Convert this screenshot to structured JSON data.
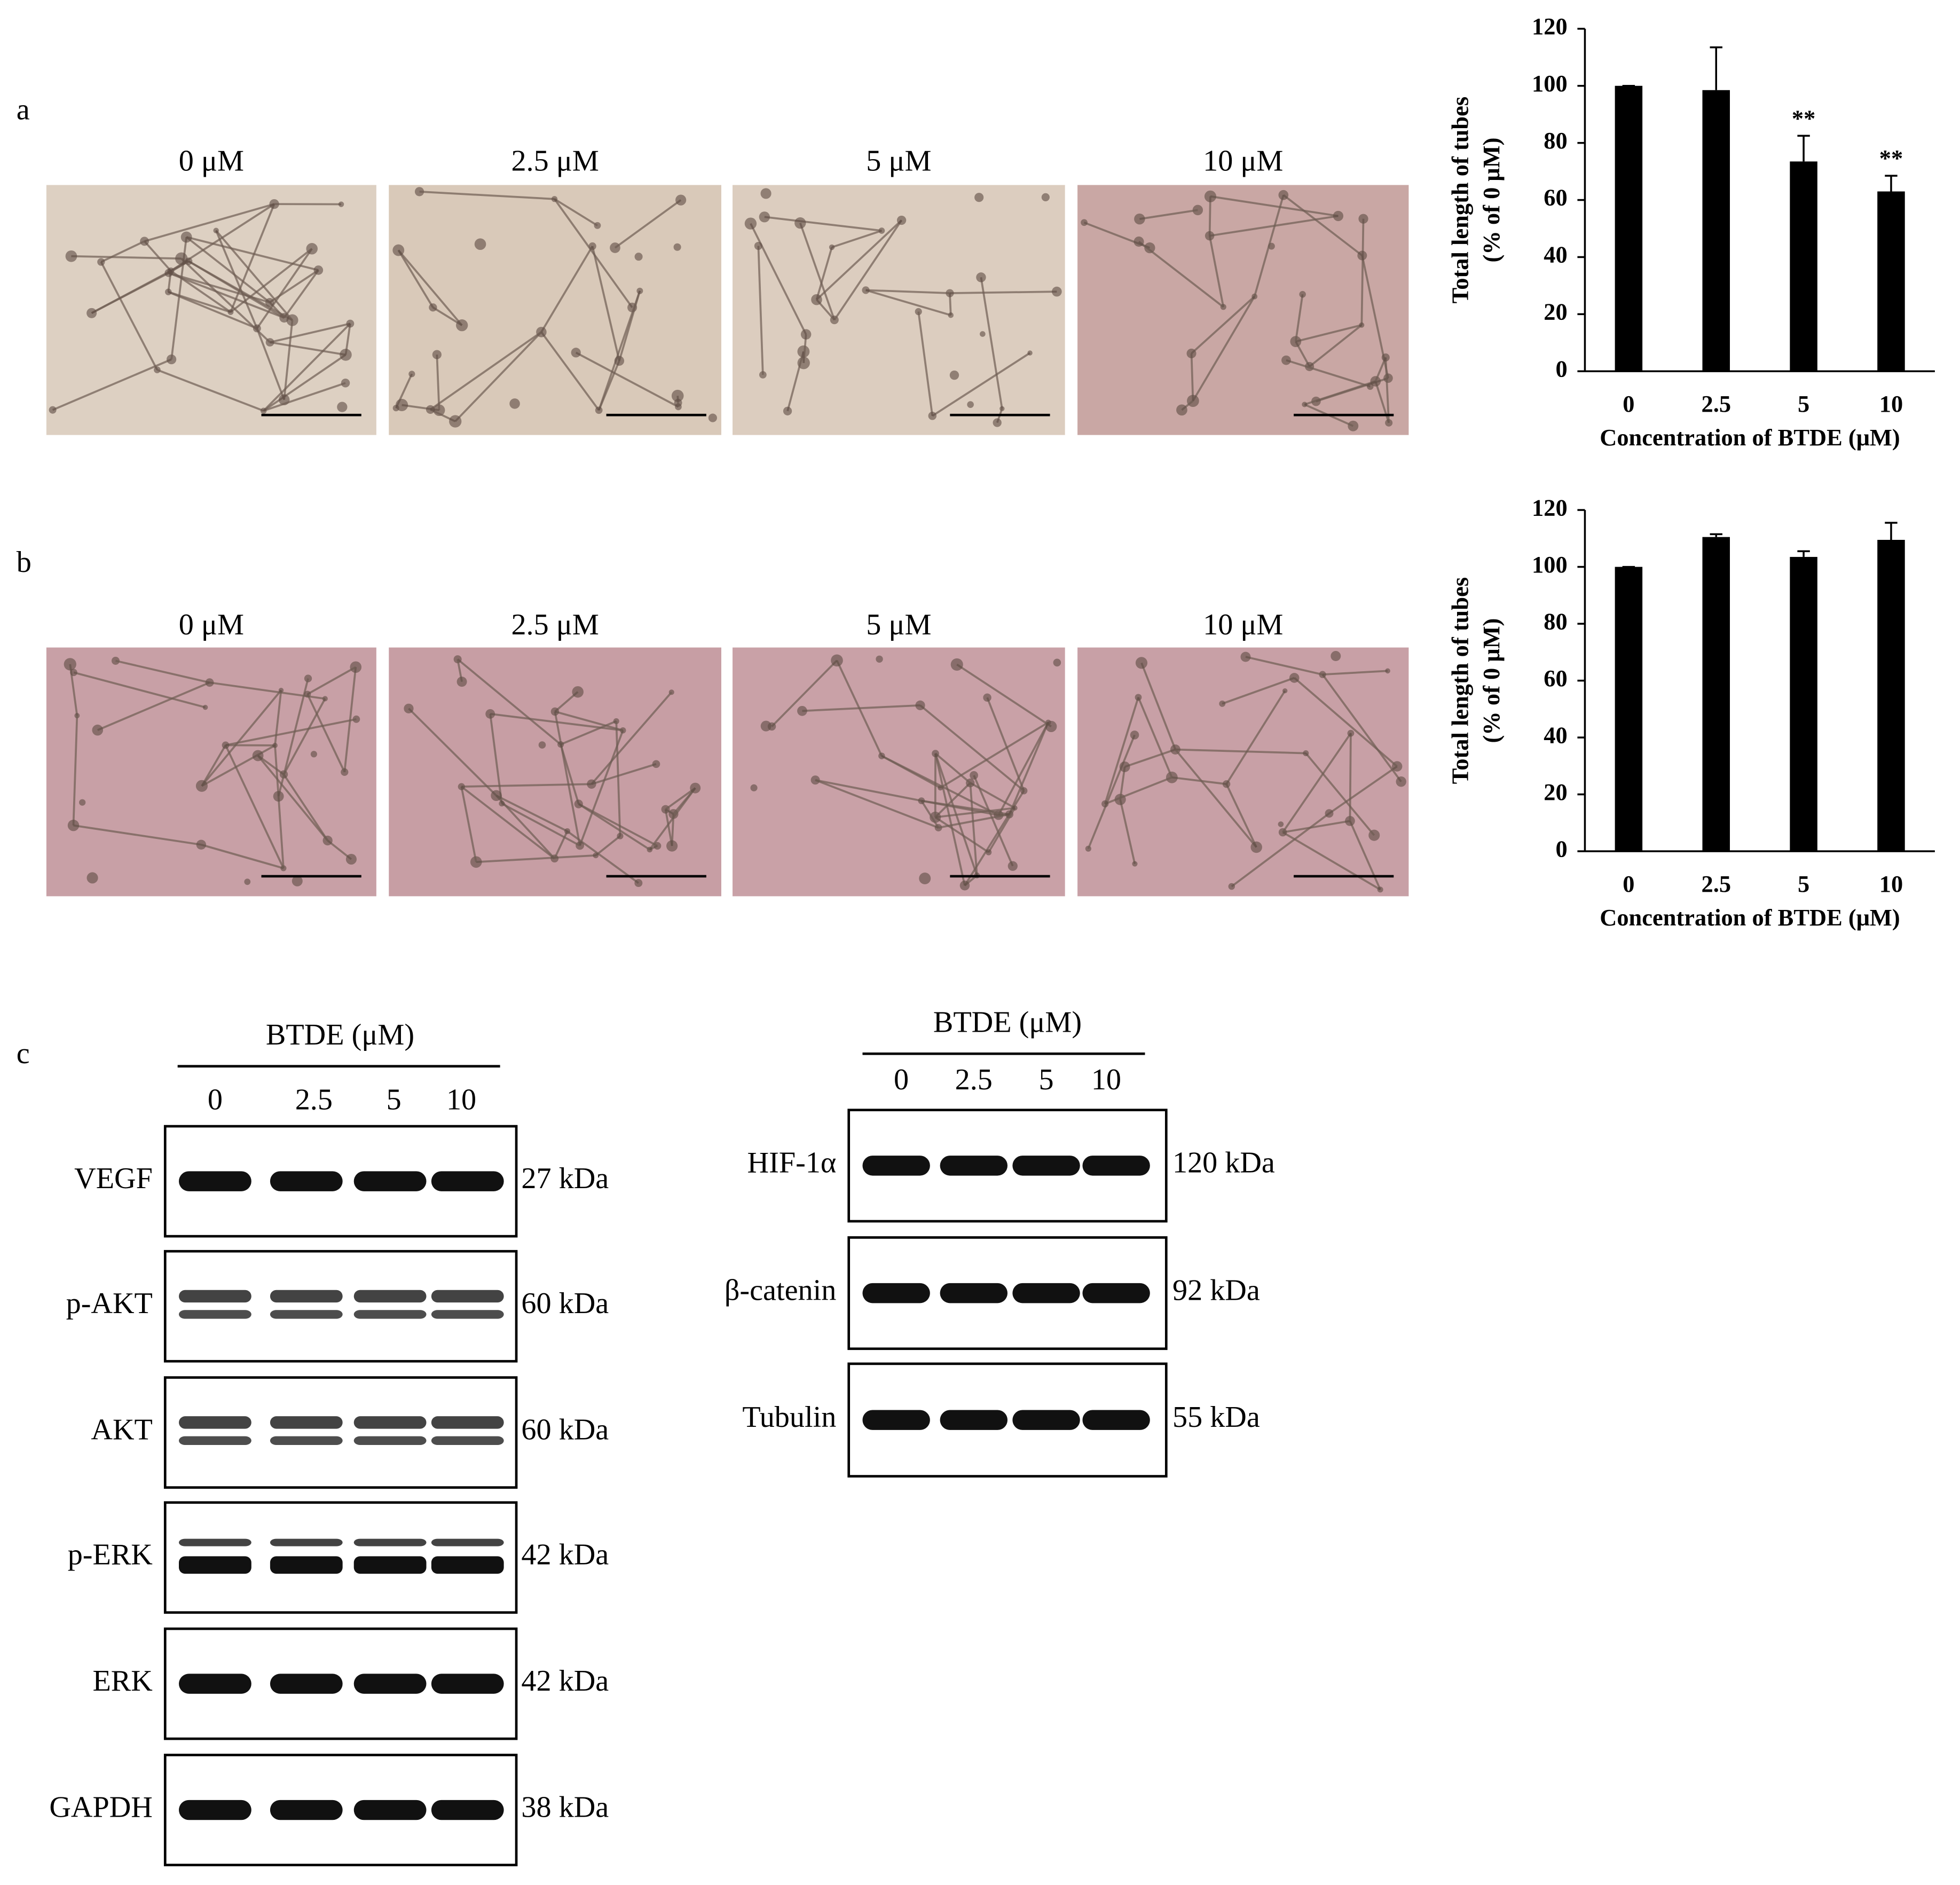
{
  "panels": {
    "a": {
      "label": "a",
      "conditions": [
        "0 μM",
        "2.5 μM",
        "5 μM",
        "10 μM"
      ]
    },
    "b": {
      "label": "b",
      "conditions": [
        "0 μM",
        "2.5 μM",
        "5 μM",
        "10 μM"
      ]
    },
    "c": {
      "label": "c",
      "blots": [
        {
          "header": "BTDE (μM)",
          "lanes": [
            "0",
            "2.5",
            "5",
            "10"
          ],
          "rows": [
            {
              "protein": "VEGF",
              "size": "27 kDa"
            },
            {
              "protein": "p-AKT",
              "size": "60 kDa"
            },
            {
              "protein": "AKT",
              "size": "60 kDa"
            },
            {
              "protein": "p-ERK",
              "size": "42 kDa"
            },
            {
              "protein": "ERK",
              "size": "42 kDa"
            },
            {
              "protein": "GAPDH",
              "size": "38 kDa"
            }
          ]
        },
        {
          "header": "BTDE (μM)",
          "lanes": [
            "0",
            "2.5",
            "5",
            "10"
          ],
          "rows": [
            {
              "protein": "HIF-1α",
              "size": "120 kDa"
            },
            {
              "protein": "β-catenin",
              "size": "92 kDa"
            },
            {
              "protein": "Tubulin",
              "size": "55 kDa"
            }
          ]
        }
      ]
    }
  },
  "chart_data": [
    {
      "type": "bar",
      "categories": [
        "0",
        "2.5",
        "5",
        "10"
      ],
      "values": [
        100,
        98.5,
        73.5,
        63
      ],
      "errors": [
        0,
        15,
        9,
        5.5
      ],
      "color": "#000000",
      "ylim": [
        0,
        120
      ],
      "yticks": [
        0,
        20,
        40,
        60,
        80,
        100,
        120
      ],
      "xlabel": "Concentration of BTDE (μM)",
      "ylabel": [
        "Total length of tubes",
        "(% of 0 μM)"
      ],
      "annotations": [
        {
          "category": "5",
          "text": "**"
        },
        {
          "category": "10",
          "text": "**"
        }
      ]
    },
    {
      "type": "bar",
      "categories": [
        "0",
        "2.5",
        "5",
        "10"
      ],
      "values": [
        100,
        110.5,
        103.5,
        109.5
      ],
      "errors": [
        0,
        1,
        2,
        6
      ],
      "color": "#000000",
      "ylim": [
        0,
        120
      ],
      "yticks": [
        0,
        20,
        40,
        60,
        80,
        100,
        120
      ],
      "xlabel": "Concentration of BTDE (μM)",
      "ylabel": [
        "Total length of tubes",
        "(% of 0 μM)"
      ]
    }
  ]
}
